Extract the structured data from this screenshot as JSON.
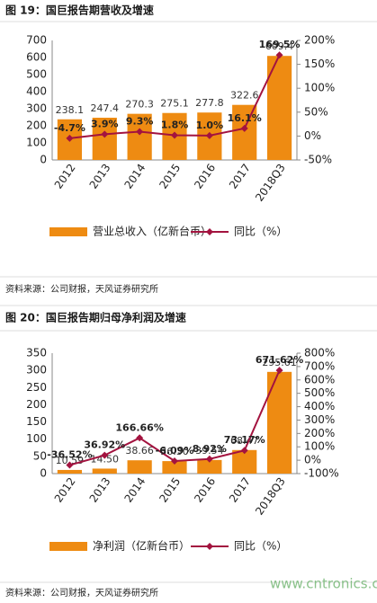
{
  "chart_data": [
    {
      "type": "bar",
      "title": "图 19：国巨报告期营收及增速",
      "categories": [
        "2012",
        "2013",
        "2014",
        "2015",
        "2016",
        "2017",
        "2018Q3"
      ],
      "series": [
        {
          "name": "营业总收入（亿新台币）",
          "color": "#ee8b12",
          "values": [
            238.1,
            247.4,
            270.3,
            275.1,
            277.8,
            322.6,
            609.4
          ]
        },
        {
          "name": "同比（%）",
          "color": "#a3133f",
          "axis": "y2",
          "values": [
            -4.7,
            3.9,
            9.3,
            1.8,
            1.0,
            16.1,
            169.5
          ],
          "value_labels": [
            "-4.7%",
            "3.9%",
            "9.3%",
            "1.8%",
            "1.0%",
            "16.1%",
            "169.5%"
          ]
        }
      ],
      "ylim": [
        0,
        700
      ],
      "yticks": [
        0,
        100,
        200,
        300,
        400,
        500,
        600,
        700
      ],
      "y2lim": [
        -50,
        200
      ],
      "y2ticks": [
        {
          "value": -50,
          "label": "-50%"
        },
        {
          "value": 0,
          "label": "0%"
        },
        {
          "value": 50,
          "label": "50%"
        },
        {
          "value": 100,
          "label": "100%"
        },
        {
          "value": 150,
          "label": "150%"
        },
        {
          "value": 200,
          "label": "200%"
        }
      ],
      "source": "资料来源：公司财报，天风证券研究所"
    },
    {
      "type": "bar",
      "title": "图 20：国巨报告期归母净利润及增速",
      "categories": [
        "2012",
        "2013",
        "2014",
        "2015",
        "2016",
        "2017",
        "2018Q3"
      ],
      "series": [
        {
          "name": "净利润（亿新台币）",
          "color": "#ee8b12",
          "values": [
            10.59,
            14.5,
            38.66,
            36.3,
            39.54,
            68.47,
            295.61
          ],
          "value_labels": [
            "10.59",
            "14.50",
            "38.66",
            "36.30",
            "39.54",
            "68.47",
            "295.61"
          ]
        },
        {
          "name": "同比（%）",
          "color": "#a3133f",
          "axis": "y2",
          "values": [
            -36.52,
            36.92,
            166.66,
            -6.09,
            8.92,
            73.17,
            671.62
          ],
          "value_labels": [
            "-36.52%",
            "36.92%",
            "166.66%",
            "-6.09%",
            "8.92%",
            "73.17%",
            "671.62%"
          ]
        }
      ],
      "ylim": [
        0,
        350
      ],
      "yticks": [
        0,
        50,
        100,
        150,
        200,
        250,
        300,
        350
      ],
      "y2lim": [
        -100,
        800
      ],
      "y2ticks": [
        {
          "value": -100,
          "label": "-100%"
        },
        {
          "value": 0,
          "label": "0%"
        },
        {
          "value": 100,
          "label": "100%"
        },
        {
          "value": 200,
          "label": "200%"
        },
        {
          "value": 300,
          "label": "300%"
        },
        {
          "value": 400,
          "label": "400%"
        },
        {
          "value": 500,
          "label": "500%"
        },
        {
          "value": 600,
          "label": "600%"
        },
        {
          "value": 700,
          "label": "700%"
        },
        {
          "value": 800,
          "label": "800%"
        }
      ],
      "source": "资料来源：公司财报，天风证券研究所"
    }
  ],
  "watermark": "www.cntronics.com"
}
